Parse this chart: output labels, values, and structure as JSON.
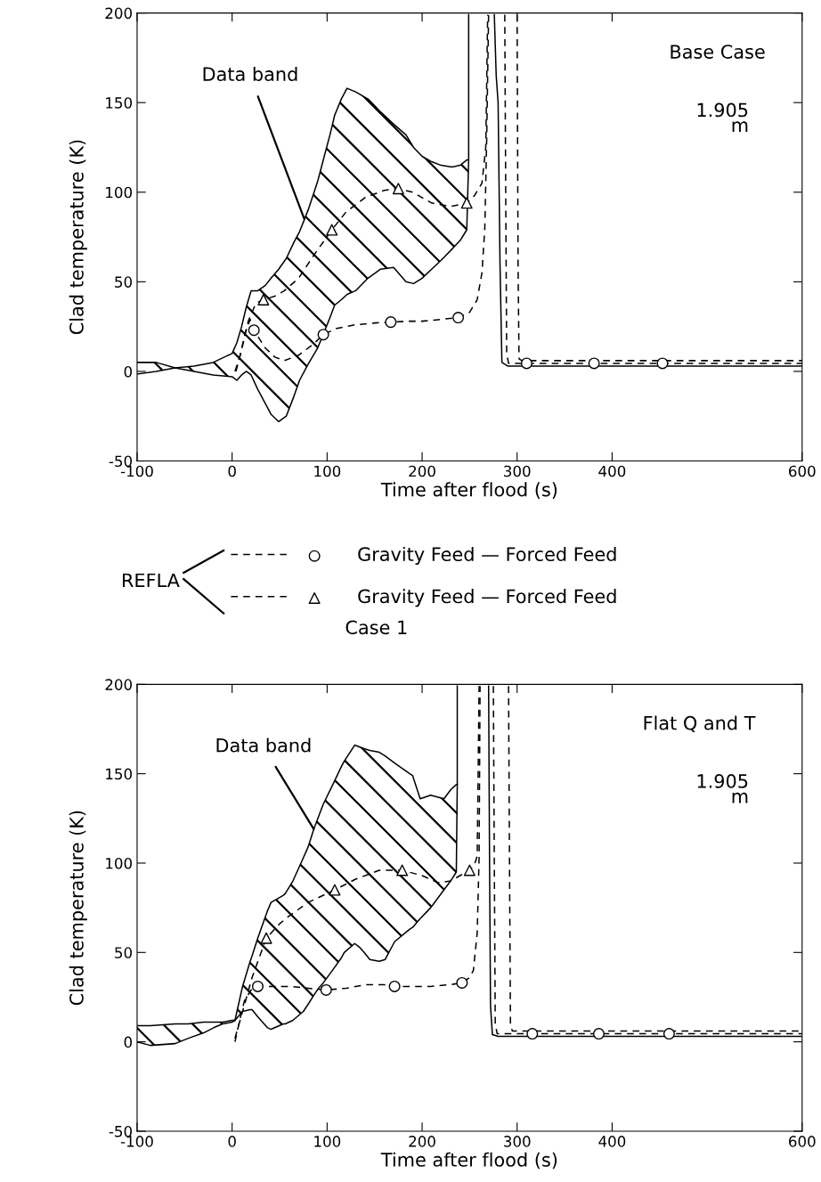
{
  "chart_data": [
    {
      "type": "line",
      "xlabel": "Time after flood (s)",
      "ylabel": "Clad temperature (K)",
      "xlim": [
        -100,
        600
      ],
      "xticks": [
        -100,
        0,
        100,
        200,
        300,
        400,
        600
      ],
      "ylim": [
        -50,
        200
      ],
      "yticks": [
        -50,
        0,
        50,
        100,
        150,
        200
      ],
      "legend": "bottom",
      "legend_title": "REFLA",
      "annotations": [
        {
          "text": "Data band",
          "x": 76,
          "y": 85
        },
        "Base Case",
        "1.905\nm",
        "Case 1"
      ],
      "series": [
        {
          "line_style": "solid",
          "color": "#000000",
          "x": [
            -100,
            -80,
            -60,
            -40,
            -20,
            0,
            5,
            10,
            15,
            20,
            27,
            35,
            41,
            49,
            57,
            65,
            71,
            80,
            90,
            97,
            103,
            108,
            115,
            121,
            130,
            143,
            156,
            170,
            183,
            191,
            200,
            210,
            220,
            231,
            240,
            247,
            249,
            249
          ],
          "values": [
            5,
            5,
            2,
            3,
            5,
            10,
            16,
            25,
            36,
            45,
            45,
            48,
            52,
            57,
            63,
            72,
            78,
            90,
            106,
            120,
            132,
            143,
            152,
            158,
            156,
            152,
            145,
            138,
            132,
            125,
            120,
            117,
            115,
            114,
            115,
            118,
            118,
            199
          ]
        },
        {
          "line_style": "solid",
          "color": "#000000",
          "x": [
            -100,
            -80,
            -60,
            -40,
            -20,
            0,
            5,
            10,
            15,
            20,
            27,
            35,
            41,
            49,
            57,
            65,
            71,
            80,
            90,
            97,
            103,
            108,
            115,
            121,
            130,
            143,
            156,
            170,
            183,
            191,
            200,
            210,
            220,
            231,
            240,
            247,
            249
          ],
          "values": [
            -1.5,
            0,
            2,
            0,
            -2,
            -3,
            -5,
            -2,
            0,
            -2,
            -10,
            -18,
            -24,
            -28,
            -25,
            -14,
            -5,
            4,
            13,
            22,
            30,
            37,
            40,
            43,
            45,
            52,
            57,
            58,
            50,
            49,
            52,
            57,
            62,
            68,
            73,
            79,
            118
          ]
        },
        {
          "line_style": "solid",
          "color": "#000000",
          "x": [
            276,
            278,
            280,
            282,
            284,
            290,
            320,
            360,
            400,
            450,
            600
          ],
          "values": [
            199,
            165,
            150,
            60,
            5,
            3,
            3,
            3,
            3,
            3,
            3
          ]
        },
        {
          "line_style": "dashed",
          "color": "#000000",
          "x": [
            3,
            8,
            14,
            19,
            23,
            35,
            45,
            55,
            70,
            85,
            96,
            110,
            130,
            150,
            167,
            185,
            200,
            220,
            238,
            250,
            258,
            263,
            266,
            268,
            270
          ],
          "values": [
            0,
            8,
            22,
            29,
            23,
            13,
            8,
            6,
            9,
            15,
            20.5,
            24,
            26,
            27,
            27.5,
            28,
            28,
            29,
            30,
            33,
            40,
            55,
            80,
            130,
            199
          ]
        },
        {
          "line_style": "dashed",
          "color": "#000000",
          "x": [
            287,
            288,
            289,
            291,
            300,
            320,
            350,
            381,
            420,
            453,
            600
          ],
          "values": [
            199,
            100,
            10,
            4.5,
            4.5,
            4.5,
            4.5,
            4.5,
            4.5,
            4.5,
            4.5
          ]
        },
        {
          "line_style": "dashed",
          "color": "#000000",
          "x": [
            4,
            10,
            17,
            25,
            33,
            45,
            55,
            70,
            85,
            105,
            120,
            140,
            160,
            175,
            190,
            210,
            230,
            247,
            255,
            263,
            267,
            269
          ],
          "values": [
            0,
            12,
            28,
            38,
            40,
            42,
            45,
            52,
            64,
            79,
            89,
            97,
            101,
            102,
            100,
            94,
            92,
            94,
            98,
            105,
            125,
            199
          ]
        },
        {
          "line_style": "dashed",
          "color": "#000000",
          "x": [
            300,
            301,
            302,
            305,
            350,
            400,
            450,
            600
          ],
          "values": [
            199,
            60,
            7,
            6,
            6,
            6,
            6,
            6
          ]
        },
        {
          "type": "scatter",
          "name": "Gravity Feed — Forced Feed",
          "marker": "circle",
          "line_style": "dashed",
          "color": "#000000",
          "x": [
            23,
            96,
            167,
            238,
            310,
            381,
            453
          ],
          "values": [
            23,
            20.5,
            27.5,
            30,
            4.5,
            4.5,
            4.5
          ]
        },
        {
          "type": "scatter",
          "name": "Gravity Feed — Forced Feed",
          "marker": "triangle",
          "line_style": "dashed",
          "color": "#000000",
          "x": [
            33,
            105,
            175,
            247
          ],
          "values": [
            40,
            79,
            102,
            94
          ]
        }
      ]
    },
    {
      "type": "line",
      "xlabel": "Time after flood (s)",
      "ylabel": "Clad temperature (K)",
      "xlim": [
        -100,
        600
      ],
      "xticks": [
        -100,
        0,
        100,
        200,
        300,
        400,
        600
      ],
      "ylim": [
        -50,
        200
      ],
      "yticks": [
        -50,
        0,
        50,
        100,
        150,
        200
      ],
      "annotations": [
        {
          "text": "Data band",
          "x": 86,
          "y": 119
        },
        "Flat Q and T",
        "1.905\nm"
      ],
      "series": [
        {
          "line_style": "solid",
          "color": "#000000",
          "x": [
            -100,
            -86,
            -60,
            -46,
            -30,
            -19,
            -10,
            0,
            3,
            11,
            19,
            21,
            27,
            37,
            41,
            54,
            56,
            64,
            75,
            80,
            86,
            91,
            96,
            107,
            115,
            118,
            129,
            134,
            139,
            145,
            155,
            161,
            171,
            187,
            190,
            198,
            209,
            223,
            230,
            236,
            237,
            237
          ],
          "values": [
            9,
            9,
            10,
            10,
            11,
            11,
            11,
            12,
            12,
            31,
            45,
            48,
            58,
            73,
            78,
            82,
            83,
            90,
            103,
            109,
            119,
            126,
            133,
            145,
            154,
            157,
            166,
            165,
            164,
            163,
            162,
            160,
            156,
            150,
            149,
            136,
            138,
            136,
            141,
            144,
            144,
            199
          ]
        },
        {
          "line_style": "solid",
          "color": "#000000",
          "x": [
            -100,
            -86,
            -60,
            -46,
            -30,
            -19,
            -10,
            0,
            3,
            11,
            19,
            21,
            27,
            37,
            41,
            54,
            56,
            64,
            75,
            80,
            86,
            91,
            96,
            107,
            115,
            118,
            129,
            134,
            139,
            145,
            155,
            161,
            171,
            187,
            190,
            198,
            209,
            223,
            230,
            236,
            237
          ],
          "values": [
            0,
            -2,
            -1,
            2,
            5,
            8,
            10,
            11,
            12,
            17,
            18,
            18,
            14,
            8,
            7,
            10,
            10,
            12,
            17,
            21,
            26,
            30,
            33,
            41,
            47,
            50,
            55,
            53,
            50,
            46,
            45,
            46,
            56,
            63,
            64,
            69,
            75,
            85,
            90,
            95,
            144
          ]
        },
        {
          "line_style": "solid",
          "color": "#000000",
          "x": [
            270,
            271,
            272,
            274,
            280,
            320,
            360,
            400,
            450,
            600
          ],
          "values": [
            199,
            100,
            20,
            4,
            3,
            3,
            3,
            3,
            3,
            3
          ]
        },
        {
          "line_style": "dashed",
          "color": "#000000",
          "x": [
            3,
            8,
            13,
            20,
            27,
            45,
            62,
            80,
            99,
            120,
            142,
            160,
            171,
            190,
            209,
            230,
            242,
            250,
            254,
            258,
            260,
            261
          ],
          "values": [
            0,
            12,
            23,
            29,
            31,
            31,
            31,
            30,
            29,
            30,
            32,
            32,
            31,
            31,
            31,
            32,
            33,
            36,
            40,
            61,
            103,
            199
          ]
        },
        {
          "line_style": "dashed",
          "color": "#000000",
          "x": [
            275,
            276,
            277,
            279,
            300,
            316,
            350,
            386,
            420,
            460,
            600
          ],
          "values": [
            199,
            100,
            10,
            4.5,
            4.5,
            4.5,
            4.5,
            4.5,
            4.5,
            4.5,
            4.5
          ]
        },
        {
          "line_style": "dashed",
          "color": "#000000",
          "x": [
            3,
            10,
            21,
            36,
            50,
            59,
            80,
            108,
            130,
            155,
            179,
            200,
            217,
            230,
            250,
            255,
            258,
            259,
            260
          ],
          "values": [
            2,
            15,
            36,
            58,
            66,
            70,
            78,
            85,
            91,
            96,
            96,
            93,
            89,
            90,
            96,
            99,
            104,
            150,
            199
          ]
        },
        {
          "line_style": "dashed",
          "color": "#000000",
          "x": [
            291,
            292,
            293,
            295,
            310,
            350,
            400,
            450,
            600
          ],
          "values": [
            199,
            100,
            10,
            6,
            6,
            6,
            6,
            6,
            6
          ]
        },
        {
          "type": "scatter",
          "marker": "circle",
          "color": "#000000",
          "x": [
            27,
            99,
            171,
            242,
            316,
            386,
            460
          ],
          "values": [
            31,
            29,
            31,
            33,
            4.5,
            4.5,
            4.5
          ]
        },
        {
          "type": "scatter",
          "marker": "triangle",
          "color": "#000000",
          "x": [
            36,
            108,
            179,
            250
          ],
          "values": [
            58,
            85,
            96,
            96
          ]
        }
      ]
    }
  ]
}
